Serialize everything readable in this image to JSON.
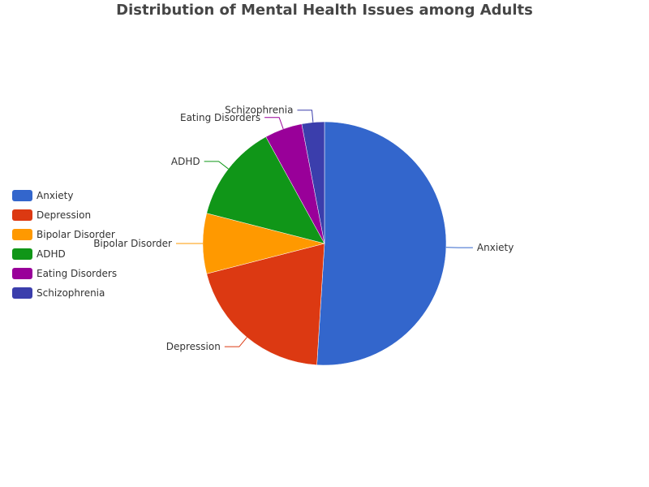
{
  "chart_data": {
    "type": "pie",
    "title": "Distribution of Mental Health Issues among Adults",
    "legend_position": "left",
    "slices": [
      {
        "label": "Anxiety",
        "value": 51,
        "color": "#3366cc"
      },
      {
        "label": "Depression",
        "value": 20,
        "color": "#dc3912"
      },
      {
        "label": "Bipolar Disorder",
        "value": 8,
        "color": "#ff9900"
      },
      {
        "label": "ADHD",
        "value": 13,
        "color": "#109618"
      },
      {
        "label": "Eating Disorders",
        "value": 5,
        "color": "#990099"
      },
      {
        "label": "Schizophrenia",
        "value": 3,
        "color": "#3b3eac"
      }
    ]
  }
}
